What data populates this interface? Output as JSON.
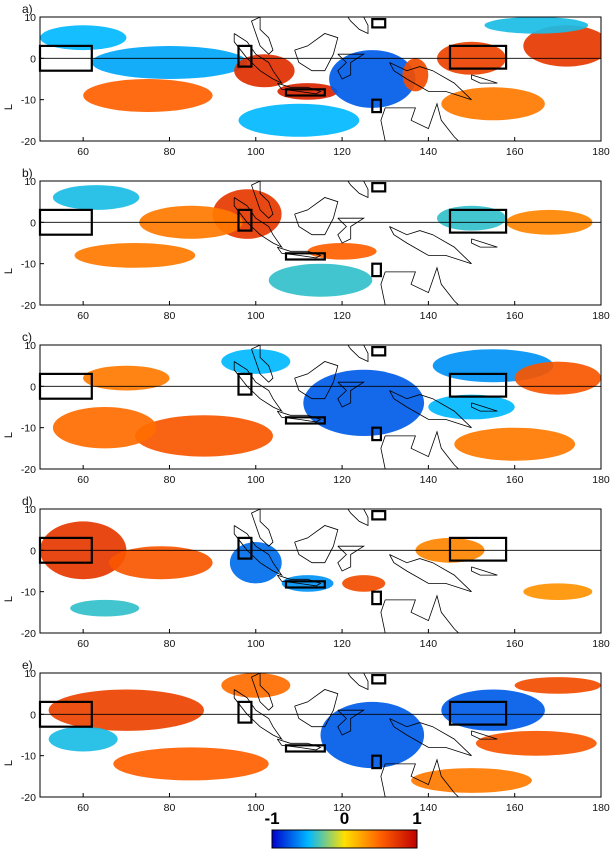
{
  "chart_data": {
    "type": "heatmap",
    "colormap": [
      "#0000d0",
      "#00b8ff",
      "#ffe000",
      "#ff6000",
      "#c00000"
    ],
    "x_axis": {
      "min": 50,
      "max": 180,
      "ticks": [
        60,
        80,
        100,
        120,
        140,
        160,
        180
      ]
    },
    "y_axis": {
      "min": -20,
      "max": 10,
      "ticks": [
        10,
        0,
        -10,
        -20
      ],
      "label": "L"
    },
    "colorbar": {
      "min": -1,
      "max": 1,
      "tick_labels": [
        "-1",
        "0",
        "1"
      ]
    },
    "boxes": [
      {
        "lon": [
          50,
          62
        ],
        "lat": [
          -3,
          3
        ]
      },
      {
        "lon": [
          96,
          99
        ],
        "lat": [
          -2,
          3
        ]
      },
      {
        "lon": [
          107,
          116
        ],
        "lat": [
          -9,
          -7.5
        ]
      },
      {
        "lon": [
          127,
          130
        ],
        "lat": [
          7.5,
          9.5
        ]
      },
      {
        "lon": [
          127,
          129
        ],
        "lat": [
          -13,
          -10
        ]
      },
      {
        "lon": [
          145,
          158
        ],
        "lat": [
          -2.5,
          3
        ]
      }
    ],
    "panels": [
      {
        "label": "a)",
        "blobs": [
          {
            "lon": 80,
            "lat": -1,
            "rx": 18,
            "ry": 4,
            "v": -0.55
          },
          {
            "lon": 60,
            "lat": 5,
            "rx": 10,
            "ry": 3,
            "v": -0.5
          },
          {
            "lon": 75,
            "lat": -9,
            "rx": 15,
            "ry": 4,
            "v": 0.5
          },
          {
            "lon": 110,
            "lat": -15,
            "rx": 14,
            "ry": 4,
            "v": -0.5
          },
          {
            "lon": 102,
            "lat": -3,
            "rx": 7,
            "ry": 4,
            "v": 0.75
          },
          {
            "lon": 112,
            "lat": -8,
            "rx": 7,
            "ry": 2,
            "v": 0.8
          },
          {
            "lon": 127,
            "lat": -5,
            "rx": 10,
            "ry": 7,
            "v": -0.75
          },
          {
            "lon": 137,
            "lat": -4,
            "rx": 3,
            "ry": 4,
            "v": 0.6
          },
          {
            "lon": 150,
            "lat": 0,
            "rx": 8,
            "ry": 4,
            "v": 0.65
          },
          {
            "lon": 172,
            "lat": 3,
            "rx": 10,
            "ry": 5,
            "v": 0.7
          },
          {
            "lon": 165,
            "lat": 8,
            "rx": 12,
            "ry": 2,
            "v": -0.45
          },
          {
            "lon": 155,
            "lat": -11,
            "rx": 12,
            "ry": 4,
            "v": 0.4
          }
        ]
      },
      {
        "label": "b)",
        "blobs": [
          {
            "lon": 98,
            "lat": 2,
            "rx": 8,
            "ry": 6,
            "v": 0.7
          },
          {
            "lon": 85,
            "lat": 0,
            "rx": 12,
            "ry": 4,
            "v": 0.4
          },
          {
            "lon": 72,
            "lat": -8,
            "rx": 14,
            "ry": 3,
            "v": 0.4
          },
          {
            "lon": 63,
            "lat": 6,
            "rx": 10,
            "ry": 3,
            "v": -0.45
          },
          {
            "lon": 115,
            "lat": -14,
            "rx": 12,
            "ry": 4,
            "v": -0.4
          },
          {
            "lon": 120,
            "lat": -7,
            "rx": 8,
            "ry": 2,
            "v": 0.5
          },
          {
            "lon": 150,
            "lat": 1,
            "rx": 8,
            "ry": 3,
            "v": -0.4
          },
          {
            "lon": 168,
            "lat": 0,
            "rx": 10,
            "ry": 3,
            "v": 0.35
          }
        ]
      },
      {
        "label": "c)",
        "blobs": [
          {
            "lon": 125,
            "lat": -4,
            "rx": 14,
            "ry": 8,
            "v": -0.75
          },
          {
            "lon": 100,
            "lat": 6,
            "rx": 8,
            "ry": 3,
            "v": -0.5
          },
          {
            "lon": 88,
            "lat": -12,
            "rx": 16,
            "ry": 5,
            "v": 0.55
          },
          {
            "lon": 65,
            "lat": -10,
            "rx": 12,
            "ry": 5,
            "v": 0.45
          },
          {
            "lon": 70,
            "lat": 2,
            "rx": 10,
            "ry": 3,
            "v": 0.4
          },
          {
            "lon": 155,
            "lat": 5,
            "rx": 14,
            "ry": 4,
            "v": -0.6
          },
          {
            "lon": 150,
            "lat": -5,
            "rx": 10,
            "ry": 3,
            "v": -0.5
          },
          {
            "lon": 170,
            "lat": 2,
            "rx": 10,
            "ry": 4,
            "v": 0.55
          },
          {
            "lon": 160,
            "lat": -14,
            "rx": 14,
            "ry": 4,
            "v": 0.4
          }
        ]
      },
      {
        "label": "d)",
        "blobs": [
          {
            "lon": 60,
            "lat": 0,
            "rx": 10,
            "ry": 7,
            "v": 0.7
          },
          {
            "lon": 78,
            "lat": -3,
            "rx": 12,
            "ry": 4,
            "v": 0.55
          },
          {
            "lon": 100,
            "lat": -3,
            "rx": 6,
            "ry": 5,
            "v": -0.7
          },
          {
            "lon": 112,
            "lat": -8,
            "rx": 6,
            "ry": 2,
            "v": -0.6
          },
          {
            "lon": 125,
            "lat": -8,
            "rx": 5,
            "ry": 2,
            "v": 0.6
          },
          {
            "lon": 145,
            "lat": 0,
            "rx": 8,
            "ry": 3,
            "v": 0.35
          },
          {
            "lon": 65,
            "lat": -14,
            "rx": 8,
            "ry": 2,
            "v": -0.4
          },
          {
            "lon": 170,
            "lat": -10,
            "rx": 8,
            "ry": 2,
            "v": 0.3
          }
        ]
      },
      {
        "label": "e)",
        "blobs": [
          {
            "lon": 70,
            "lat": 1,
            "rx": 18,
            "ry": 5,
            "v": 0.65
          },
          {
            "lon": 85,
            "lat": -12,
            "rx": 18,
            "ry": 4,
            "v": 0.5
          },
          {
            "lon": 60,
            "lat": -6,
            "rx": 8,
            "ry": 3,
            "v": -0.45
          },
          {
            "lon": 127,
            "lat": -5,
            "rx": 12,
            "ry": 8,
            "v": -0.75
          },
          {
            "lon": 155,
            "lat": 1,
            "rx": 12,
            "ry": 5,
            "v": -0.75
          },
          {
            "lon": 170,
            "lat": 7,
            "rx": 10,
            "ry": 2,
            "v": 0.6
          },
          {
            "lon": 165,
            "lat": -7,
            "rx": 14,
            "ry": 3,
            "v": 0.55
          },
          {
            "lon": 100,
            "lat": 7,
            "rx": 8,
            "ry": 3,
            "v": 0.45
          },
          {
            "lon": 150,
            "lat": -16,
            "rx": 14,
            "ry": 3,
            "v": 0.4
          }
        ]
      }
    ]
  }
}
